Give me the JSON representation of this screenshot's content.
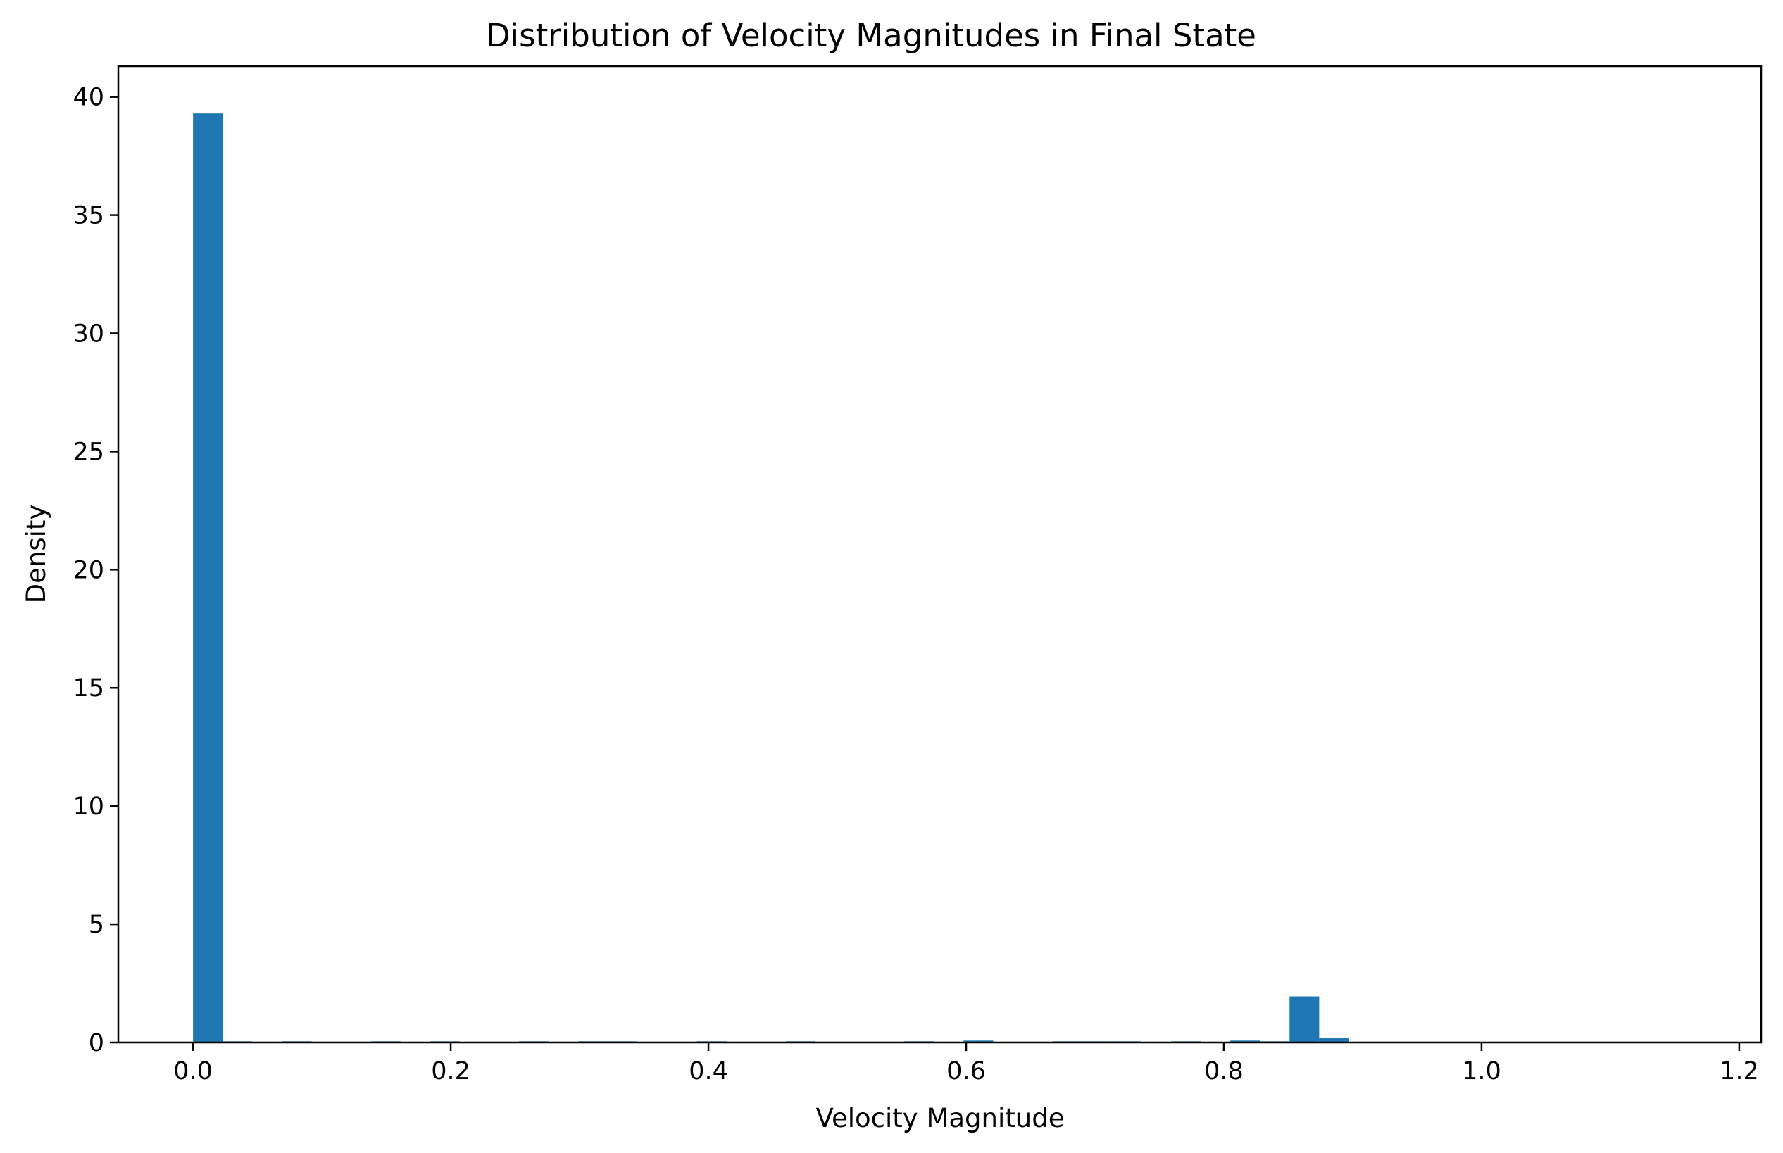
{
  "chart_data": {
    "type": "bar",
    "title": "Distribution of Velocity Magnitudes in Final State",
    "xlabel": "Velocity Magnitude",
    "ylabel": "Density",
    "xlim": [
      -0.058,
      1.217
    ],
    "ylim": [
      0,
      41.3
    ],
    "x_ticks": [
      {
        "value": 0.0,
        "label": "0.0"
      },
      {
        "value": 0.2,
        "label": "0.2"
      },
      {
        "value": 0.4,
        "label": "0.4"
      },
      {
        "value": 0.6,
        "label": "0.6"
      },
      {
        "value": 0.8,
        "label": "0.8"
      },
      {
        "value": 1.0,
        "label": "1.0"
      },
      {
        "value": 1.2,
        "label": "1.2"
      }
    ],
    "y_ticks": [
      {
        "value": 0,
        "label": "0"
      },
      {
        "value": 5,
        "label": "5"
      },
      {
        "value": 10,
        "label": "10"
      },
      {
        "value": 15,
        "label": "15"
      },
      {
        "value": 20,
        "label": "20"
      },
      {
        "value": 25,
        "label": "25"
      },
      {
        "value": 30,
        "label": "30"
      },
      {
        "value": 35,
        "label": "35"
      },
      {
        "value": 40,
        "label": "40"
      }
    ],
    "bin_start": 0.0,
    "bin_width": 0.023,
    "values": [
      39.3,
      0.05,
      0.0,
      0.05,
      0.0,
      0.0,
      0.05,
      0.0,
      0.05,
      0.0,
      0.0,
      0.05,
      0.0,
      0.05,
      0.05,
      0.0,
      0.0,
      0.05,
      0.0,
      0.0,
      0.05,
      0.0,
      0.0,
      0.0,
      0.05,
      0.0,
      0.08,
      0.0,
      0.0,
      0.05,
      0.05,
      0.05,
      0.0,
      0.05,
      0.0,
      0.08,
      0.05,
      1.95,
      0.18
    ],
    "bar_color": "#1f77b4",
    "grid": false,
    "legend": "none"
  }
}
